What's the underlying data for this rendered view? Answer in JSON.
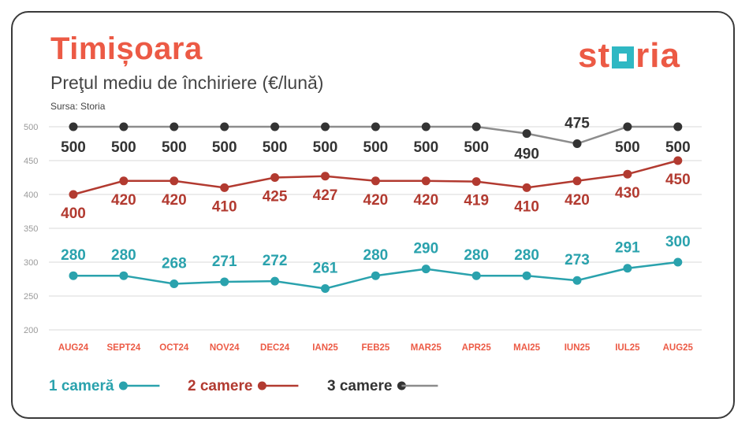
{
  "header": {
    "title": "Timișoara",
    "subtitle": "Preţul mediu de închiriere (€/lună)",
    "source": "Sursa: Storia",
    "logo_text": "storia"
  },
  "chart_data": {
    "type": "line",
    "categories": [
      "AUG24",
      "SEPT24",
      "OCT24",
      "NOV24",
      "DEC24",
      "IAN25",
      "FEB25",
      "MAR25",
      "APR25",
      "MAI25",
      "IUN25",
      "IUL25",
      "AUG25"
    ],
    "ylim": [
      200,
      500
    ],
    "yticks": [
      200,
      250,
      300,
      350,
      400,
      450,
      500
    ],
    "grid": true,
    "legend_position": "bottom-left",
    "series": [
      {
        "name": "1 cameră",
        "color": "#2aa2ad",
        "values": [
          280,
          280,
          268,
          271,
          272,
          261,
          280,
          290,
          280,
          280,
          273,
          291,
          300
        ]
      },
      {
        "name": "2 camere",
        "color": "#b23a30",
        "values": [
          400,
          420,
          420,
          410,
          425,
          427,
          420,
          420,
          419,
          410,
          420,
          430,
          450
        ]
      },
      {
        "name": "3 camere",
        "color": "#333333",
        "line_color": "#8c8c8c",
        "values": [
          500,
          500,
          500,
          500,
          500,
          500,
          500,
          500,
          500,
          490,
          475,
          500,
          500
        ]
      }
    ]
  },
  "colors": {
    "accent": "#ec5a45",
    "teal": "#2aa2ad",
    "red": "#b23a30",
    "grey": "#8c8c8c"
  }
}
